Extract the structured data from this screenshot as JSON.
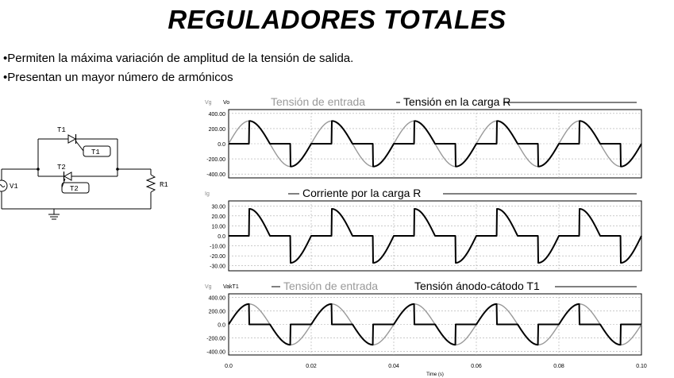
{
  "title": "REGULADORES TOTALES",
  "bullets": [
    "•Permiten la máxima variación de amplitud de la tensión de salida.",
    "•Presentan un mayor número de armónicos"
  ],
  "circuit": {
    "labels": {
      "t1": "T1",
      "t1_gate": "T1",
      "t2": "T2",
      "t2_gate": "T2",
      "source": "V1",
      "load": "R1"
    }
  },
  "chart_data": [
    {
      "type": "line",
      "short_labels": [
        "Vg",
        "Vo"
      ],
      "legend": [
        "Tensión de entrada",
        "Tensión en la carga R"
      ],
      "series": [
        {
          "name": "Tensión de entrada",
          "color": "#999999",
          "fn": "sine",
          "amplitude": 300,
          "frequency_hz": 50
        },
        {
          "name": "Tensión en la carga R",
          "color": "#000000",
          "fn": "ac_controlled",
          "amplitude": 300,
          "frequency_hz": 50,
          "firing_angle_deg": 90
        }
      ],
      "ylim": [
        -450,
        450
      ],
      "yticks": [
        "400.00",
        "200.00",
        "0.0",
        "-200.00",
        "-400.00"
      ],
      "ytick_values": [
        400,
        200,
        0,
        -200,
        -400
      ]
    },
    {
      "type": "line",
      "short_labels": [
        "Ig"
      ],
      "legend": [
        "Corriente por la carga R"
      ],
      "series": [
        {
          "name": "Corriente por la carga R",
          "color": "#000000",
          "fn": "ac_controlled",
          "amplitude": 27,
          "frequency_hz": 50,
          "firing_angle_deg": 90
        }
      ],
      "ylim": [
        -35,
        35
      ],
      "yticks": [
        "30.00",
        "20.00",
        "10.00",
        "0.0",
        "-10.00",
        "-20.00",
        "-30.00"
      ],
      "ytick_values": [
        30,
        20,
        10,
        0,
        -10,
        -20,
        -30
      ]
    },
    {
      "type": "line",
      "short_labels": [
        "Vg",
        "VakT1"
      ],
      "legend": [
        "Tensión de entrada",
        "Tensión ánodo-cátodo T1"
      ],
      "series": [
        {
          "name": "Tensión de entrada",
          "color": "#999999",
          "fn": "sine",
          "amplitude": 300,
          "frequency_hz": 50
        },
        {
          "name": "Tensión ánodo-cátodo T1",
          "color": "#000000",
          "fn": "ac_blocking",
          "amplitude": 300,
          "frequency_hz": 50,
          "firing_angle_deg": 90
        }
      ],
      "ylim": [
        -450,
        450
      ],
      "yticks": [
        "400.00",
        "200.00",
        "0.0",
        "-200.00",
        "-400.00"
      ],
      "ytick_values": [
        400,
        200,
        0,
        -200,
        -400
      ]
    }
  ],
  "xaxis": {
    "label": "Time (s)",
    "ticks": [
      "0.0",
      "0.02",
      "0.04",
      "0.06",
      "0.08",
      "0.10"
    ],
    "tick_values": [
      0,
      0.02,
      0.04,
      0.06,
      0.08,
      0.1
    ],
    "xlim": [
      0,
      0.1
    ]
  }
}
